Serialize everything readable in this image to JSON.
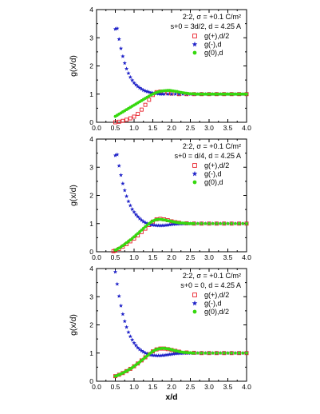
{
  "colors": {
    "plus": "#e8202a",
    "minus": "#1f22c8",
    "zero": "#36d80f",
    "axis": "#000000"
  },
  "icons": {
    "plus": "open-square",
    "minus": "filled-star",
    "zero": "filled-circle"
  },
  "chart_data": [
    {
      "type": "scatter",
      "title": "",
      "annotation_lines": [
        "2:2, σ = +0.1 C/m²",
        "s+0 = 3d/2, d = 4.25 A"
      ],
      "xlabel": "",
      "ylabel": "g(x/d)",
      "xlim": [
        0,
        4
      ],
      "ylim": [
        0,
        4
      ],
      "xticks": [
        "0.0",
        "0.5",
        "1.0",
        "1.5",
        "2.0",
        "2.5",
        "3.0",
        "3.5",
        "4.0"
      ],
      "yticks": [
        "0",
        "1",
        "2",
        "3",
        "4"
      ],
      "legend_position": "top-right",
      "series": [
        {
          "name": "g(+),d/2",
          "marker": "open-square",
          "color": "#e8202a",
          "x": [
            0.5,
            0.6,
            0.7,
            0.8,
            0.9,
            1.0,
            1.1,
            1.2,
            1.3,
            1.4,
            1.5,
            1.6,
            1.7,
            1.8,
            1.9,
            2.0,
            2.2,
            2.4,
            2.6,
            2.8,
            3.0,
            3.2,
            3.4,
            3.6,
            3.8,
            4.0
          ],
          "y": [
            0.0,
            0.02,
            0.05,
            0.09,
            0.14,
            0.2,
            0.3,
            0.45,
            0.62,
            0.8,
            0.97,
            1.07,
            1.09,
            1.07,
            1.04,
            1.02,
            1.0,
            1.0,
            1.0,
            1.0,
            1.0,
            1.0,
            1.0,
            1.0,
            1.0,
            1.0
          ]
        },
        {
          "name": "g(-),d",
          "marker": "filled-star",
          "color": "#1f22c8",
          "x": [
            0.5,
            0.55,
            0.6,
            0.65,
            0.7,
            0.75,
            0.8,
            0.85,
            0.9,
            0.95,
            1.0,
            1.05,
            1.1,
            1.15,
            1.2,
            1.25,
            1.3,
            1.35,
            1.4,
            1.45,
            1.5,
            1.55,
            1.6,
            1.65,
            1.7,
            1.75,
            1.8,
            1.9,
            2.0,
            2.1,
            2.2,
            2.3,
            2.4,
            2.5,
            2.6,
            2.7,
            2.8,
            2.9,
            3.0,
            3.1,
            3.2,
            3.3,
            3.4,
            3.5,
            3.6,
            3.7,
            3.8,
            3.9,
            4.0
          ],
          "y": [
            3.31,
            3.33,
            2.95,
            2.62,
            2.34,
            2.1,
            1.9,
            1.74,
            1.6,
            1.49,
            1.4,
            1.33,
            1.27,
            1.22,
            1.18,
            1.14,
            1.11,
            1.09,
            1.07,
            1.05,
            1.04,
            1.03,
            1.02,
            1.01,
            1.0,
            1.0,
            1.0,
            1.0,
            1.0,
            1.0,
            1.0,
            1.0,
            1.0,
            1.0,
            1.0,
            1.0,
            1.0,
            1.0,
            1.0,
            1.0,
            1.0,
            1.0,
            1.0,
            1.0,
            1.0,
            1.0,
            1.0,
            1.0,
            1.0
          ]
        },
        {
          "name": "g(0),d",
          "marker": "filled-circle",
          "color": "#36d80f",
          "x": [
            0.5,
            0.55,
            0.6,
            0.65,
            0.7,
            0.75,
            0.8,
            0.85,
            0.9,
            0.95,
            1.0,
            1.05,
            1.1,
            1.15,
            1.2,
            1.25,
            1.3,
            1.35,
            1.4,
            1.45,
            1.5,
            1.55,
            1.6,
            1.65,
            1.7,
            1.75,
            1.8,
            1.85,
            1.9,
            1.95,
            2.0,
            2.05,
            2.1,
            2.15,
            2.2,
            2.25,
            2.3,
            2.35,
            2.4,
            2.45,
            2.5,
            2.55,
            2.6,
            2.65,
            2.7,
            2.75,
            2.8,
            2.85,
            2.9,
            2.95,
            3.0,
            3.05,
            3.1,
            3.15,
            3.2,
            3.25,
            3.3,
            3.35,
            3.4,
            3.45,
            3.5,
            3.55,
            3.6,
            3.65,
            3.7,
            3.75,
            3.8,
            3.85,
            3.9,
            3.95,
            4.0
          ],
          "y": [
            0.21,
            0.25,
            0.29,
            0.33,
            0.37,
            0.41,
            0.45,
            0.49,
            0.53,
            0.57,
            0.61,
            0.65,
            0.69,
            0.73,
            0.77,
            0.81,
            0.85,
            0.89,
            0.93,
            0.97,
            1.0,
            1.03,
            1.06,
            1.08,
            1.1,
            1.11,
            1.12,
            1.125,
            1.13,
            1.13,
            1.12,
            1.11,
            1.1,
            1.09,
            1.07,
            1.06,
            1.05,
            1.04,
            1.03,
            1.02,
            1.01,
            1.01,
            1.01,
            1.0,
            1.0,
            1.0,
            1.0,
            1.0,
            1.0,
            1.0,
            1.0,
            1.0,
            1.0,
            1.0,
            1.0,
            1.0,
            1.0,
            1.0,
            1.0,
            1.0,
            1.0,
            1.0,
            1.0,
            1.0,
            1.0,
            1.0,
            1.0,
            1.0,
            1.0,
            1.0,
            1.0
          ]
        }
      ]
    },
    {
      "type": "scatter",
      "title": "",
      "annotation_lines": [
        "2:2, σ = +0.1 C/m²",
        "s+0 = d/4, d = 4.25 A"
      ],
      "xlabel": "",
      "ylabel": "g(x/d)",
      "xlim": [
        0,
        4
      ],
      "ylim": [
        0,
        4
      ],
      "xticks": [
        "0.0",
        "0.5",
        "1.0",
        "1.5",
        "2.0",
        "2.5",
        "3.0",
        "3.5",
        "4.0"
      ],
      "yticks": [
        "0",
        "1",
        "2",
        "3",
        "4"
      ],
      "legend_position": "top-right",
      "series": [
        {
          "name": "g(+),d/2",
          "marker": "open-square",
          "color": "#e8202a",
          "x": [
            0.45,
            0.5,
            0.6,
            0.7,
            0.8,
            0.9,
            1.0,
            1.1,
            1.2,
            1.3,
            1.4,
            1.5,
            1.6,
            1.7,
            1.8,
            1.9,
            2.0,
            2.1,
            2.2,
            2.4,
            2.6,
            2.8,
            3.0,
            3.2,
            3.4,
            3.6,
            3.8,
            4.0
          ],
          "y": [
            0.02,
            0.04,
            0.1,
            0.18,
            0.27,
            0.37,
            0.47,
            0.58,
            0.7,
            0.82,
            0.95,
            1.07,
            1.15,
            1.17,
            1.15,
            1.12,
            1.08,
            1.05,
            1.03,
            1.01,
            1.0,
            1.0,
            1.0,
            1.0,
            1.0,
            1.0,
            1.0,
            1.0
          ]
        },
        {
          "name": "g(-),d",
          "marker": "filled-star",
          "color": "#1f22c8",
          "x": [
            0.5,
            0.55,
            0.6,
            0.65,
            0.7,
            0.75,
            0.8,
            0.85,
            0.9,
            0.95,
            1.0,
            1.05,
            1.1,
            1.15,
            1.2,
            1.25,
            1.3,
            1.35,
            1.4,
            1.45,
            1.5,
            1.55,
            1.6,
            1.65,
            1.7,
            1.75,
            1.8,
            1.85,
            1.9,
            1.95,
            2.0,
            2.05,
            2.1,
            2.15,
            2.2,
            2.25,
            2.3,
            2.35,
            2.4,
            2.45,
            2.5,
            2.6,
            2.7,
            2.8,
            2.9,
            3.0,
            3.1,
            3.2,
            3.3,
            3.4,
            3.5,
            3.6,
            3.7,
            3.8,
            3.9,
            4.0
          ],
          "y": [
            3.42,
            3.45,
            3.05,
            2.72,
            2.42,
            2.18,
            1.97,
            1.79,
            1.64,
            1.51,
            1.41,
            1.32,
            1.25,
            1.18,
            1.12,
            1.07,
            1.03,
            1.0,
            0.98,
            0.96,
            0.95,
            0.94,
            0.935,
            0.93,
            0.93,
            0.93,
            0.935,
            0.94,
            0.95,
            0.96,
            0.97,
            0.975,
            0.98,
            0.985,
            0.99,
            0.99,
            0.995,
            1.0,
            1.0,
            1.0,
            1.0,
            1.0,
            1.0,
            1.0,
            1.0,
            1.0,
            1.0,
            1.0,
            1.0,
            1.0,
            1.0,
            1.0,
            1.0,
            1.0,
            1.0,
            1.0
          ]
        },
        {
          "name": "g(0),d",
          "marker": "filled-circle",
          "color": "#36d80f",
          "x": [
            0.5,
            0.55,
            0.6,
            0.65,
            0.7,
            0.75,
            0.8,
            0.85,
            0.9,
            0.95,
            1.0,
            1.05,
            1.1,
            1.15,
            1.2,
            1.25,
            1.3,
            1.35,
            1.4,
            1.45,
            1.5,
            1.55,
            1.6,
            1.65,
            1.7,
            1.75,
            1.8,
            1.85,
            1.9,
            1.95,
            2.0,
            2.05,
            2.1,
            2.15,
            2.2,
            2.25,
            2.3,
            2.35,
            2.4,
            2.45,
            2.5,
            2.55,
            2.6,
            2.7,
            2.8,
            2.9,
            3.0,
            3.1,
            3.2,
            3.3,
            3.4,
            3.5,
            3.6,
            3.7,
            3.8,
            3.9,
            4.0
          ],
          "y": [
            0.06,
            0.09,
            0.13,
            0.17,
            0.22,
            0.27,
            0.32,
            0.37,
            0.42,
            0.47,
            0.53,
            0.59,
            0.65,
            0.71,
            0.77,
            0.83,
            0.89,
            0.95,
            1.0,
            1.05,
            1.09,
            1.12,
            1.14,
            1.15,
            1.15,
            1.14,
            1.13,
            1.12,
            1.1,
            1.09,
            1.08,
            1.06,
            1.05,
            1.04,
            1.03,
            1.02,
            1.02,
            1.01,
            1.01,
            1.0,
            1.0,
            1.0,
            1.0,
            1.0,
            1.0,
            1.0,
            1.0,
            1.0,
            1.0,
            1.0,
            1.0,
            1.0,
            1.0,
            1.0,
            1.0,
            1.0,
            1.0
          ]
        }
      ]
    },
    {
      "type": "scatter",
      "title": "",
      "annotation_lines": [
        "2:2, σ = +0.1 C/m²",
        "s+0 = 0, d = 4.25 A"
      ],
      "xlabel": "x/d",
      "ylabel": "g(x/d)",
      "xlim": [
        0,
        4
      ],
      "ylim": [
        0,
        4
      ],
      "xticks": [
        "0.0",
        "0.5",
        "1.0",
        "1.5",
        "2.0",
        "2.5",
        "3.0",
        "3.5",
        "4.0"
      ],
      "yticks": [
        "0",
        "1",
        "2",
        "3",
        "4"
      ],
      "legend_position": "top-right",
      "series": [
        {
          "name": "g(+),d/2",
          "marker": "open-square",
          "color": "#e8202a",
          "x": [
            0.5,
            0.6,
            0.7,
            0.8,
            0.9,
            1.0,
            1.1,
            1.2,
            1.3,
            1.4,
            1.5,
            1.6,
            1.7,
            1.8,
            1.9,
            2.0,
            2.1,
            2.2,
            2.4,
            2.6,
            2.8,
            3.0,
            3.2,
            3.4,
            3.6,
            3.8,
            4.0
          ],
          "y": [
            0.18,
            0.23,
            0.29,
            0.36,
            0.44,
            0.53,
            0.63,
            0.74,
            0.85,
            0.96,
            1.06,
            1.13,
            1.16,
            1.16,
            1.14,
            1.11,
            1.08,
            1.05,
            1.02,
            1.01,
            1.0,
            1.0,
            1.0,
            1.0,
            1.0,
            1.0,
            1.0
          ]
        },
        {
          "name": "g(-),d",
          "marker": "filled-star",
          "color": "#1f22c8",
          "x": [
            0.5,
            0.55,
            0.6,
            0.65,
            0.7,
            0.75,
            0.8,
            0.85,
            0.9,
            0.95,
            1.0,
            1.05,
            1.1,
            1.15,
            1.2,
            1.25,
            1.3,
            1.35,
            1.4,
            1.45,
            1.5,
            1.55,
            1.6,
            1.65,
            1.7,
            1.75,
            1.8,
            1.85,
            1.9,
            1.95,
            2.0,
            2.05,
            2.1,
            2.15,
            2.2,
            2.25,
            2.3,
            2.35,
            2.4,
            2.45,
            2.5,
            2.6,
            2.7,
            2.8,
            2.9,
            3.0,
            3.1,
            3.2,
            3.3,
            3.4,
            3.5,
            3.6,
            3.7,
            3.8,
            3.9,
            4.0
          ],
          "y": [
            3.88,
            3.45,
            3.02,
            2.68,
            2.38,
            2.13,
            1.92,
            1.74,
            1.59,
            1.47,
            1.36,
            1.27,
            1.19,
            1.13,
            1.08,
            1.04,
            1.0,
            0.97,
            0.95,
            0.93,
            0.92,
            0.915,
            0.91,
            0.91,
            0.91,
            0.915,
            0.92,
            0.93,
            0.94,
            0.95,
            0.96,
            0.97,
            0.98,
            0.985,
            0.99,
            0.99,
            0.995,
            1.0,
            1.0,
            1.0,
            1.0,
            1.0,
            1.0,
            1.0,
            1.0,
            1.0,
            1.0,
            1.0,
            1.0,
            1.0,
            1.0,
            1.0,
            1.0,
            1.0,
            1.0,
            1.0
          ]
        },
        {
          "name": "g(0),d/2",
          "marker": "filled-circle",
          "color": "#36d80f",
          "x": [
            0.5,
            0.55,
            0.6,
            0.65,
            0.7,
            0.75,
            0.8,
            0.85,
            0.9,
            0.95,
            1.0,
            1.05,
            1.1,
            1.15,
            1.2,
            1.25,
            1.3,
            1.35,
            1.4,
            1.45,
            1.5,
            1.55,
            1.6,
            1.65,
            1.7,
            1.75,
            1.8,
            1.85,
            1.9,
            1.95,
            2.0,
            2.05,
            2.1,
            2.15,
            2.2,
            2.25,
            2.3,
            2.35,
            2.4,
            2.45,
            2.5,
            2.55,
            2.6,
            2.7,
            2.8,
            2.9,
            3.0,
            3.1,
            3.2,
            3.3,
            3.4,
            3.5,
            3.6,
            3.7,
            3.8,
            3.9,
            4.0
          ],
          "y": [
            0.18,
            0.2,
            0.23,
            0.26,
            0.29,
            0.33,
            0.36,
            0.4,
            0.44,
            0.48,
            0.53,
            0.58,
            0.63,
            0.68,
            0.74,
            0.79,
            0.85,
            0.9,
            0.96,
            1.01,
            1.06,
            1.1,
            1.13,
            1.15,
            1.16,
            1.17,
            1.17,
            1.16,
            1.15,
            1.14,
            1.12,
            1.1,
            1.08,
            1.07,
            1.05,
            1.04,
            1.03,
            1.02,
            1.02,
            1.01,
            1.01,
            1.0,
            1.0,
            1.0,
            1.0,
            1.0,
            1.0,
            1.0,
            1.0,
            1.0,
            1.0,
            1.0,
            1.0,
            1.0,
            1.0,
            1.0,
            1.0
          ]
        }
      ]
    }
  ]
}
